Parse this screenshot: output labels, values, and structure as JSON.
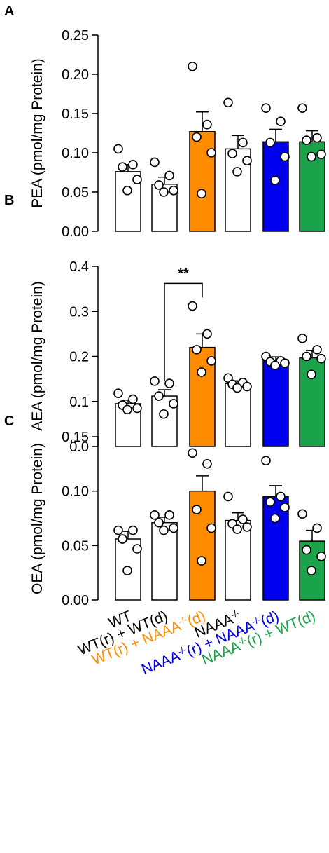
{
  "colors": {
    "white": "#ffffff",
    "orange": "#ff8c00",
    "blue": "#0000ee",
    "green": "#1aa34a",
    "black": "#000000"
  },
  "categories": [
    {
      "parts": [
        {
          "t": "WT"
        }
      ],
      "color": "#000000"
    },
    {
      "parts": [
        {
          "t": "WT(r) + WT(d)"
        }
      ],
      "color": "#000000"
    },
    {
      "parts": [
        {
          "t": "WT(r) + NAAA"
        },
        {
          "t": "-/-",
          "sup": true
        },
        {
          "t": "(d)"
        }
      ],
      "color": "#ff8c00"
    },
    {
      "parts": [
        {
          "t": "NAAA"
        },
        {
          "t": "-/-",
          "sup": true
        }
      ],
      "color": "#000000"
    },
    {
      "parts": [
        {
          "t": "NAAA"
        },
        {
          "t": "-/-",
          "sup": true
        },
        {
          "t": "(r) + NAAA"
        },
        {
          "t": "-/-",
          "sup": true
        },
        {
          "t": "(d)"
        }
      ],
      "color": "#0000ee"
    },
    {
      "parts": [
        {
          "t": "NAAA"
        },
        {
          "t": "-/-",
          "sup": true
        },
        {
          "t": "(r) + WT(d)"
        }
      ],
      "color": "#1aa34a"
    }
  ],
  "chart_data": [
    {
      "type": "bar",
      "panel_label": "A",
      "ylabel": "PEA (pmol/mg Protein)",
      "ylim": [
        0,
        0.25
      ],
      "yticks": [
        "0.00",
        "0.05",
        "0.10",
        "0.15",
        "0.20",
        "0.25"
      ],
      "bar_colors": [
        "#ffffff",
        "#ffffff",
        "#ff8c00",
        "#ffffff",
        "#0000ee",
        "#1aa34a"
      ],
      "means": [
        0.076,
        0.06,
        0.127,
        0.105,
        0.114,
        0.114
      ],
      "sem": [
        0.009,
        0.009,
        0.025,
        0.017,
        0.016,
        0.014
      ],
      "points": [
        [
          0.105,
          0.085,
          0.082,
          0.066,
          0.052
        ],
        [
          0.088,
          0.071,
          0.059,
          0.052,
          0.05
        ],
        [
          0.21,
          0.136,
          0.12,
          0.1,
          0.048
        ],
        [
          0.164,
          0.113,
          0.099,
          0.09,
          0.076
        ],
        [
          0.157,
          0.14,
          0.113,
          0.095,
          0.065
        ],
        [
          0.157,
          0.119,
          0.116,
          0.098,
          0.095
        ]
      ],
      "annotations": []
    },
    {
      "type": "bar",
      "panel_label": "B",
      "ylabel": "AEA (pmol/mg Protein)",
      "ylim": [
        0,
        0.4
      ],
      "yticks": [
        "0.0",
        "0.1",
        "0.2",
        "0.3",
        "0.4"
      ],
      "bar_colors": [
        "#ffffff",
        "#ffffff",
        "#ff8c00",
        "#ffffff",
        "#0000ee",
        "#1aa34a"
      ],
      "means": [
        0.095,
        0.112,
        0.22,
        0.14,
        0.192,
        0.197
      ],
      "sem": [
        0.008,
        0.014,
        0.03,
        0.006,
        0.007,
        0.016
      ],
      "points": [
        [
          0.118,
          0.105,
          0.092,
          0.085,
          0.082
        ],
        [
          0.145,
          0.14,
          0.112,
          0.095,
          0.072
        ],
        [
          0.312,
          0.25,
          0.215,
          0.19,
          0.165
        ],
        [
          0.152,
          0.142,
          0.138,
          0.133,
          0.13
        ],
        [
          0.2,
          0.19,
          0.188,
          0.185,
          0.18
        ],
        [
          0.24,
          0.215,
          0.2,
          0.195,
          0.16
        ]
      ],
      "annotations": [
        {
          "text": "**",
          "from": 1,
          "to": 2,
          "y": 0.362
        }
      ]
    },
    {
      "type": "bar",
      "panel_label": "C",
      "ylabel": "OEA (pmol/mg Protein)",
      "ylim": [
        0,
        0.15
      ],
      "yticks": [
        "0.00",
        "0.05",
        "0.10",
        "0.15"
      ],
      "bar_colors": [
        "#ffffff",
        "#ffffff",
        "#ff8c00",
        "#ffffff",
        "#0000ee",
        "#1aa34a"
      ],
      "means": [
        0.056,
        0.071,
        0.1,
        0.073,
        0.095,
        0.054
      ],
      "sem": [
        0.007,
        0.005,
        0.014,
        0.007,
        0.01,
        0.01
      ],
      "points": [
        [
          0.064,
          0.064,
          0.056,
          0.047,
          0.027
        ],
        [
          0.078,
          0.078,
          0.071,
          0.066,
          0.064
        ],
        [
          0.135,
          0.125,
          0.083,
          0.066,
          0.036
        ],
        [
          0.095,
          0.074,
          0.07,
          0.067,
          0.065
        ],
        [
          0.128,
          0.095,
          0.09,
          0.085,
          0.075
        ],
        [
          0.079,
          0.066,
          0.046,
          0.04,
          0.027
        ]
      ],
      "annotations": []
    }
  ]
}
